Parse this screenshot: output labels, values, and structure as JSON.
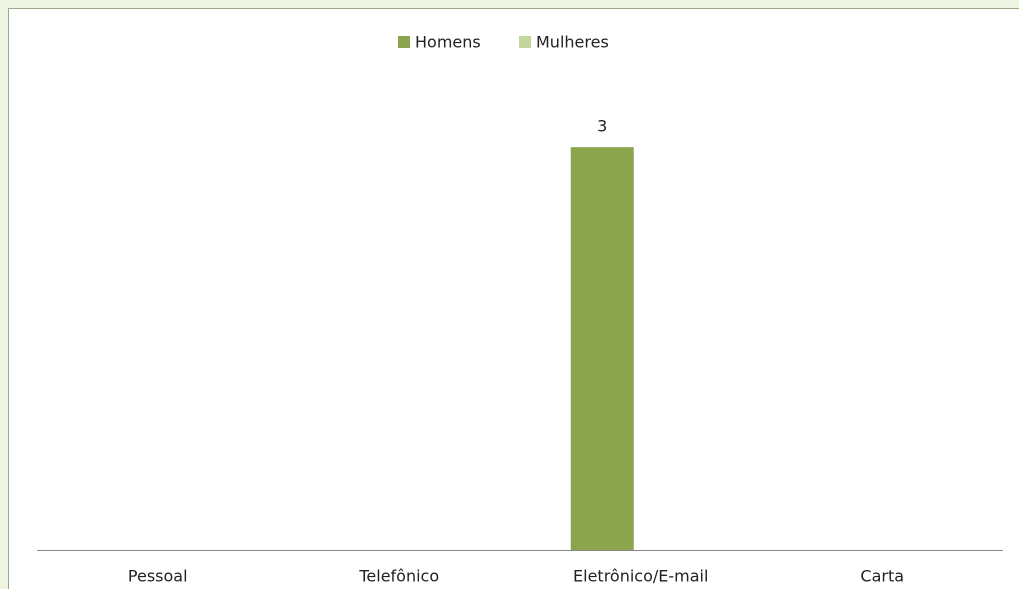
{
  "chart_data": {
    "type": "bar",
    "categories": [
      "Pessoal",
      "Telefônico",
      "Eletrônico/E-mail",
      "Carta"
    ],
    "series": [
      {
        "name": "Homens",
        "color": "#8aa54e",
        "values": [
          null,
          null,
          3,
          null
        ]
      },
      {
        "name": "Mulheres",
        "color": "#c3d69b",
        "values": [
          null,
          null,
          null,
          null
        ]
      }
    ],
    "ylim": [
      0,
      3.5
    ],
    "legend": "top"
  }
}
